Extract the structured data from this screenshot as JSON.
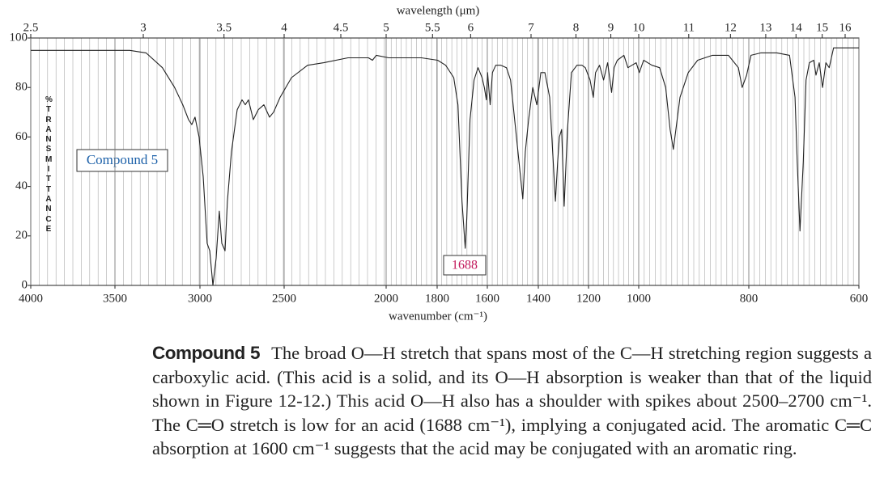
{
  "chart_data": {
    "type": "line",
    "x_label": "wavenumber (cm⁻¹)",
    "x2_label": "wavelength (μm)",
    "y_label": "%TRANSMITTANCE",
    "annotations": [
      "Compound 5",
      "1688"
    ],
    "xlim": [
      4000,
      600
    ],
    "xticks": [
      4000,
      3500,
      3000,
      2500,
      2000,
      1800,
      1600,
      1400,
      1200,
      1000,
      800,
      600
    ],
    "x2ticks": [
      2.5,
      3,
      3.5,
      4,
      4.5,
      5,
      5.5,
      6,
      7,
      8,
      9,
      10,
      11,
      12,
      13,
      14,
      15,
      16
    ],
    "ylim": [
      0,
      100
    ],
    "yticks": [
      0,
      20,
      40,
      60,
      80,
      100
    ],
    "grid": true,
    "series": [
      {
        "color": "#222222",
        "x": [
          4000,
          3413,
          3317,
          3221,
          3149,
          3101,
          3067,
          3048,
          3029,
          3005,
          2981,
          2957,
          2942,
          2923,
          2904,
          2885,
          2870,
          2851,
          2837,
          2813,
          2779,
          2750,
          2731,
          2712,
          2683,
          2654,
          2620,
          2587,
          2563,
          2524,
          2464,
          2385,
          2306,
          2187,
          2127,
          2087,
          2067,
          2048,
          1990,
          1926,
          1862,
          1798,
          1766,
          1734,
          1717,
          1701,
          1688,
          1682,
          1669,
          1653,
          1637,
          1621,
          1612,
          1604,
          1599,
          1589,
          1580,
          1567,
          1547,
          1525,
          1509,
          1483,
          1461,
          1451,
          1438,
          1422,
          1406,
          1390,
          1374,
          1355,
          1332,
          1323,
          1316,
          1307,
          1297,
          1284,
          1268,
          1246,
          1226,
          1213,
          1194,
          1181,
          1172,
          1156,
          1140,
          1124,
          1108,
          1098,
          1085,
          1059,
          1043,
          1027,
          1010,
          999,
          991,
          976,
          962,
          951,
          943,
          937,
          925,
          910,
          893,
          866,
          837,
          819,
          812,
          804,
          796,
          778,
          749,
          726,
          716,
          712,
          707,
          701,
          696,
          690,
          682,
          678,
          672,
          666,
          660,
          654,
          646,
          631,
          600
        ],
        "values": [
          95,
          95,
          94,
          88,
          80,
          73,
          67,
          65,
          68,
          60,
          44,
          17,
          14,
          0,
          11,
          30,
          17,
          14,
          34,
          54,
          71,
          75,
          73,
          75,
          67,
          71,
          73,
          68,
          70,
          76,
          84,
          89,
          90,
          92,
          92,
          92,
          91,
          93,
          92,
          92,
          92,
          91,
          89,
          84,
          73,
          34,
          15,
          27,
          67,
          83,
          88,
          84,
          80,
          75,
          86,
          73,
          86,
          89,
          89,
          88,
          83,
          57,
          35,
          54,
          67,
          80,
          73,
          86,
          86,
          76,
          34,
          50,
          60,
          63,
          32,
          63,
          86,
          89,
          89,
          88,
          83,
          76,
          86,
          89,
          83,
          90,
          78,
          88,
          91,
          93,
          88,
          89,
          90,
          86,
          91,
          89,
          88,
          80,
          63,
          55,
          76,
          86,
          91,
          93,
          93,
          88,
          80,
          85,
          93,
          94,
          94,
          93,
          76,
          50,
          22,
          50,
          83,
          90,
          91,
          85,
          90,
          80,
          90,
          88,
          96,
          96,
          96
        ]
      }
    ]
  },
  "caption": {
    "label": "Compound 5",
    "text": "The broad O—H stretch that spans most of the C—H stretching region suggests a carboxylic acid. (This acid is a solid, and its O—H absorption is weaker than that of the liquid shown in Figure 12-12.) This acid O—H also has a shoulder with spikes about 2500–2700 cm⁻¹. The C═O stretch is low for an acid (1688 cm⁻¹), implying a conjugated acid. The aromatic C═C absorption at 1600 cm⁻¹ suggests that the acid may be conjugated with an aromatic ring."
  }
}
